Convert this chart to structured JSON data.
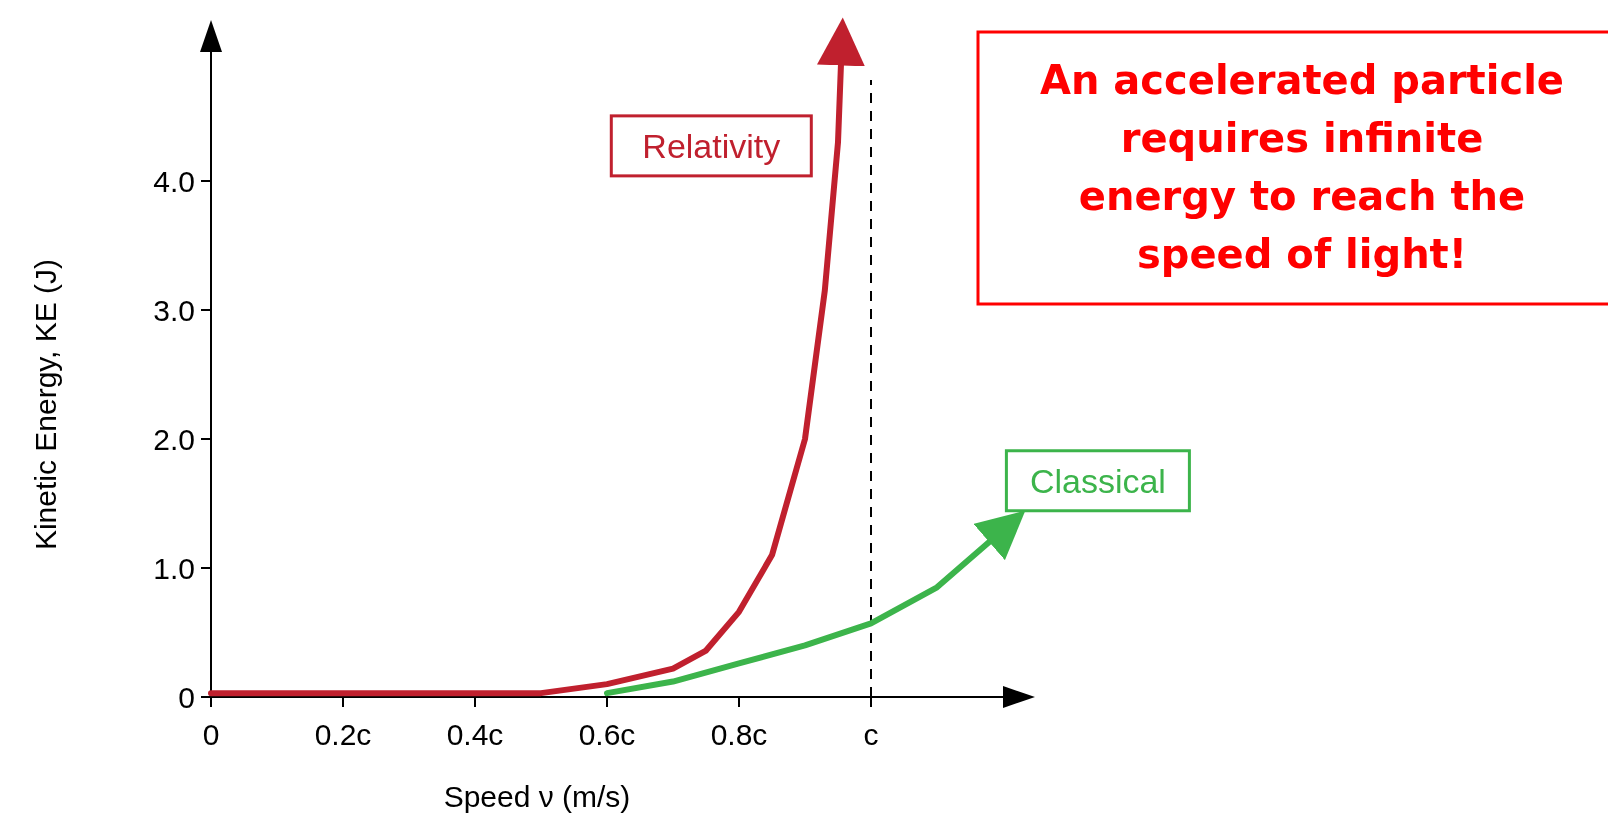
{
  "chart_data": {
    "type": "line",
    "xlabel": "Speed ν (m/s)",
    "ylabel": "Kinetic Energy, KE (J)",
    "xlim": [
      0,
      1.2
    ],
    "ylim": [
      0,
      5
    ],
    "xticks": [
      0,
      {
        "value": 0.2,
        "label": "0.2c"
      },
      {
        "value": 0.4,
        "label": "0.4c"
      },
      {
        "value": 0.6,
        "label": "0.6c"
      },
      {
        "value": 0.8,
        "label": "0.8c"
      },
      {
        "value": 1,
        "label": "c"
      }
    ],
    "yticks": [
      0,
      {
        "value": 1,
        "label": "1.0"
      },
      {
        "value": 2,
        "label": "2.0"
      },
      {
        "value": 3,
        "label": "3.0"
      },
      {
        "value": 4,
        "label": "4.0"
      }
    ],
    "grid": false,
    "legend": false,
    "series": [
      {
        "name": "Classical",
        "color": "#3cb44b",
        "x": [
          0.6,
          0.7,
          0.8,
          0.9,
          1.0,
          1.1,
          1.19
        ],
        "values": [
          0.03,
          0.12,
          0.26,
          0.4,
          0.57,
          0.85,
          1.25
        ]
      },
      {
        "name": "Relativity",
        "color": "#c0202e",
        "x": [
          0,
          0.2,
          0.4,
          0.5,
          0.6,
          0.7,
          0.75,
          0.8,
          0.85,
          0.9,
          0.93,
          0.95,
          0.955
        ],
        "values": [
          0.03,
          0.03,
          0.03,
          0.03,
          0.1,
          0.22,
          0.36,
          0.66,
          1.1,
          2.0,
          3.15,
          4.3,
          4.97
        ]
      }
    ],
    "ref_lines": [
      {
        "axis": "x",
        "value": 1,
        "line_style": "dashed",
        "color": "#000000"
      }
    ],
    "annotations": [
      "An accelerated particle requires infinite energy to reach the speed of light!"
    ]
  }
}
